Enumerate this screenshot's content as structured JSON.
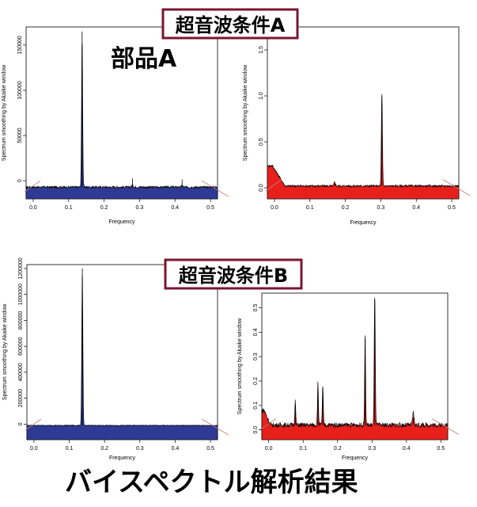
{
  "labels": {
    "condition_a": "超音波条件A",
    "condition_b": "超音波条件B",
    "part_label": "部品A",
    "footer": "バイスペクトル解析結果"
  },
  "colors": {
    "blue_fill": "#2e3a94",
    "red_fill": "#e8201c",
    "box_border": "#7a1630",
    "diag_line": "#c87a7a"
  },
  "chart_data": [
    {
      "id": "a_left",
      "type": "area",
      "title": "",
      "xlabel": "Frequency",
      "ylabel": "Spectrum smoothing by Akaike window",
      "xlim": [
        -0.02,
        0.52
      ],
      "ylim": [
        -20000,
        170000
      ],
      "xticks": [
        0.0,
        0.1,
        0.2,
        0.3,
        0.4,
        0.5
      ],
      "xtick_labels": [
        "0.0",
        "0.1",
        "0.2",
        "0.3",
        "0.4",
        "0.5"
      ],
      "yticks": [
        0,
        50000,
        100000,
        150000
      ],
      "ytick_labels": [
        "0",
        "50000",
        "100000",
        "150000"
      ],
      "fill": "#2e3a94",
      "baseline": -7000,
      "noise": 1200,
      "peaks": [
        {
          "x": 0.138,
          "y": 165000,
          "w": 0.0022
        },
        {
          "x": 0.28,
          "y": 2500,
          "w": 0.003
        },
        {
          "x": 0.42,
          "y": 1500,
          "w": 0.003
        }
      ]
    },
    {
      "id": "a_right",
      "type": "area",
      "title": "",
      "xlabel": "Frequency",
      "ylabel": "Spectrum smoothing by Akaike window",
      "xlim": [
        -0.02,
        0.52
      ],
      "ylim": [
        -0.12,
        1.75
      ],
      "xticks": [
        0.0,
        0.1,
        0.2,
        0.3,
        0.4,
        0.5
      ],
      "xtick_labels": [
        "0.0",
        "0.1",
        "0.2",
        "0.3",
        "0.4",
        "0.5"
      ],
      "yticks": [
        0.0,
        0.5,
        1.0,
        1.5
      ],
      "ytick_labels": [
        "0.0",
        "0.5",
        "1.0",
        "1.5"
      ],
      "fill": "#e8201c",
      "baseline": 0.02,
      "noise": 0.012,
      "lowrise": {
        "x0": -0.02,
        "x1": 0.03,
        "y": 0.22
      },
      "peaks": [
        {
          "x": 0.303,
          "y": 1.0,
          "w": 0.0022
        },
        {
          "x": 0.17,
          "y": 0.04,
          "w": 0.003
        }
      ]
    },
    {
      "id": "b_left",
      "type": "area",
      "title": "",
      "xlabel": "Frequency",
      "ylabel": "Spectrum smoothing by Akaike window",
      "xlim": [
        -0.02,
        0.52
      ],
      "ylim": [
        -120000,
        1230000
      ],
      "xticks": [
        0.0,
        0.1,
        0.2,
        0.3,
        0.4,
        0.5
      ],
      "xtick_labels": [
        "0.0",
        "0.1",
        "0.2",
        "0.3",
        "0.4",
        "0.5"
      ],
      "yticks": [
        0,
        200000,
        400000,
        600000,
        800000,
        1000000,
        1200000
      ],
      "ytick_labels": [
        "0",
        "200000",
        "400000",
        "600000",
        "800000",
        "1000000",
        "1200000"
      ],
      "fill": "#2e3a94",
      "baseline": -10000,
      "noise": 3000,
      "peaks": [
        {
          "x": 0.137,
          "y": 1200000,
          "w": 0.0022
        }
      ]
    },
    {
      "id": "b_right",
      "type": "area",
      "title": "",
      "xlabel": "Frequency",
      "ylabel": "Spectrum smoothing by Akaike window",
      "xlim": [
        -0.02,
        0.52
      ],
      "ylim": [
        -0.04,
        0.56
      ],
      "xticks": [
        0.0,
        0.1,
        0.2,
        0.3,
        0.4,
        0.5
      ],
      "xtick_labels": [
        "0.0",
        "0.1",
        "0.2",
        "0.3",
        "0.4",
        "0.5"
      ],
      "yticks": [
        0.0,
        0.1,
        0.2,
        0.3,
        0.4,
        0.5
      ],
      "ytick_labels": [
        "0.0",
        "0.1",
        "0.2",
        "0.3",
        "0.4",
        "0.5"
      ],
      "fill": "#e8201c",
      "baseline": 0.02,
      "noise": 0.01,
      "lowrise": {
        "x0": -0.02,
        "x1": 0.005,
        "y": 0.06
      },
      "peaks": [
        {
          "x": 0.077,
          "y": 0.1,
          "w": 0.002
        },
        {
          "x": 0.143,
          "y": 0.17,
          "w": 0.002
        },
        {
          "x": 0.157,
          "y": 0.16,
          "w": 0.002
        },
        {
          "x": 0.28,
          "y": 0.37,
          "w": 0.002
        },
        {
          "x": 0.308,
          "y": 0.54,
          "w": 0.0022
        },
        {
          "x": 0.42,
          "y": 0.05,
          "w": 0.003
        }
      ]
    }
  ]
}
